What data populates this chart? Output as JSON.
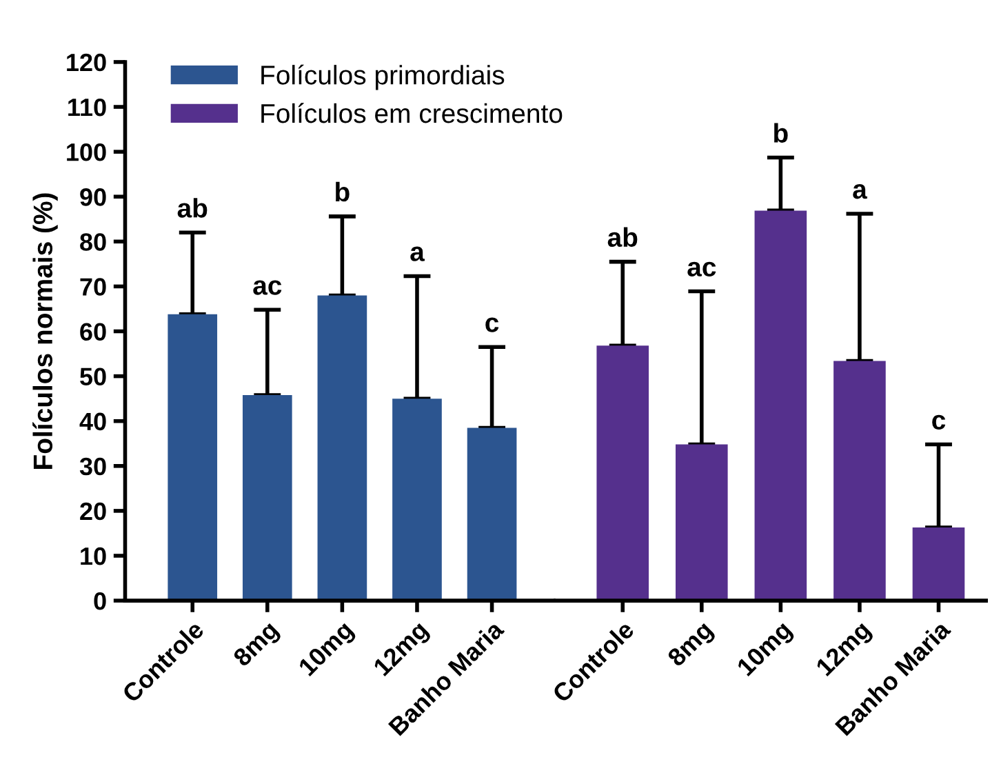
{
  "chart_data": [
    {
      "type": "bar",
      "ylabel": "Folículos normais (%)",
      "categories": [
        "Controle",
        "8mg",
        "10mg",
        "12mg",
        "Banho Maria"
      ],
      "series": [
        {
          "name": "Folículos primordiais",
          "color": "#2c5590",
          "values": [
            63.8,
            45.8,
            68.0,
            45.0,
            38.5
          ],
          "errors": [
            [
              63.8,
              82.0
            ],
            [
              45.8,
              64.8
            ],
            [
              68.0,
              85.6
            ],
            [
              45.0,
              72.3
            ],
            [
              38.5,
              56.5
            ]
          ]
        }
      ],
      "annotations": [
        {
          "text": "ab",
          "x": "Controle",
          "y": 82.0
        },
        {
          "text": "ac",
          "x": "8mg",
          "y": 64.8
        },
        {
          "text": "b",
          "x": "10mg",
          "y": 85.6
        },
        {
          "text": "a",
          "x": "12mg",
          "y": 72.3
        },
        {
          "text": "c",
          "x": "Banho Maria",
          "y": 56.5
        }
      ],
      "ylim": [
        0,
        120
      ],
      "yticks": [
        0,
        10,
        20,
        30,
        40,
        50,
        60,
        70,
        80,
        90,
        100,
        110,
        120
      ],
      "grid": false,
      "legend": "top left"
    },
    {
      "type": "bar",
      "categories": [
        "Controle",
        "8mg",
        "10mg",
        "12mg",
        "Banho Maria"
      ],
      "series": [
        {
          "name": "Folículos em crescimento",
          "color": "#55308d",
          "values": [
            56.8,
            34.8,
            86.9,
            53.4,
            16.3
          ],
          "errors": [
            [
              56.8,
              75.5
            ],
            [
              34.8,
              68.9
            ],
            [
              86.9,
              98.7
            ],
            [
              53.4,
              86.2
            ],
            [
              16.3,
              34.8
            ]
          ]
        }
      ],
      "annotations": [
        {
          "text": "ab",
          "x": "Controle",
          "y": 75.5
        },
        {
          "text": "ac",
          "x": "8mg",
          "y": 68.9
        },
        {
          "text": "b",
          "x": "10mg",
          "y": 98.7
        },
        {
          "text": "a",
          "x": "12mg",
          "y": 86.2
        },
        {
          "text": "c",
          "x": "Banho Maria",
          "y": 34.8
        }
      ],
      "ylim": [
        0,
        120
      ],
      "tick_labels": "x",
      "grid": false
    }
  ]
}
